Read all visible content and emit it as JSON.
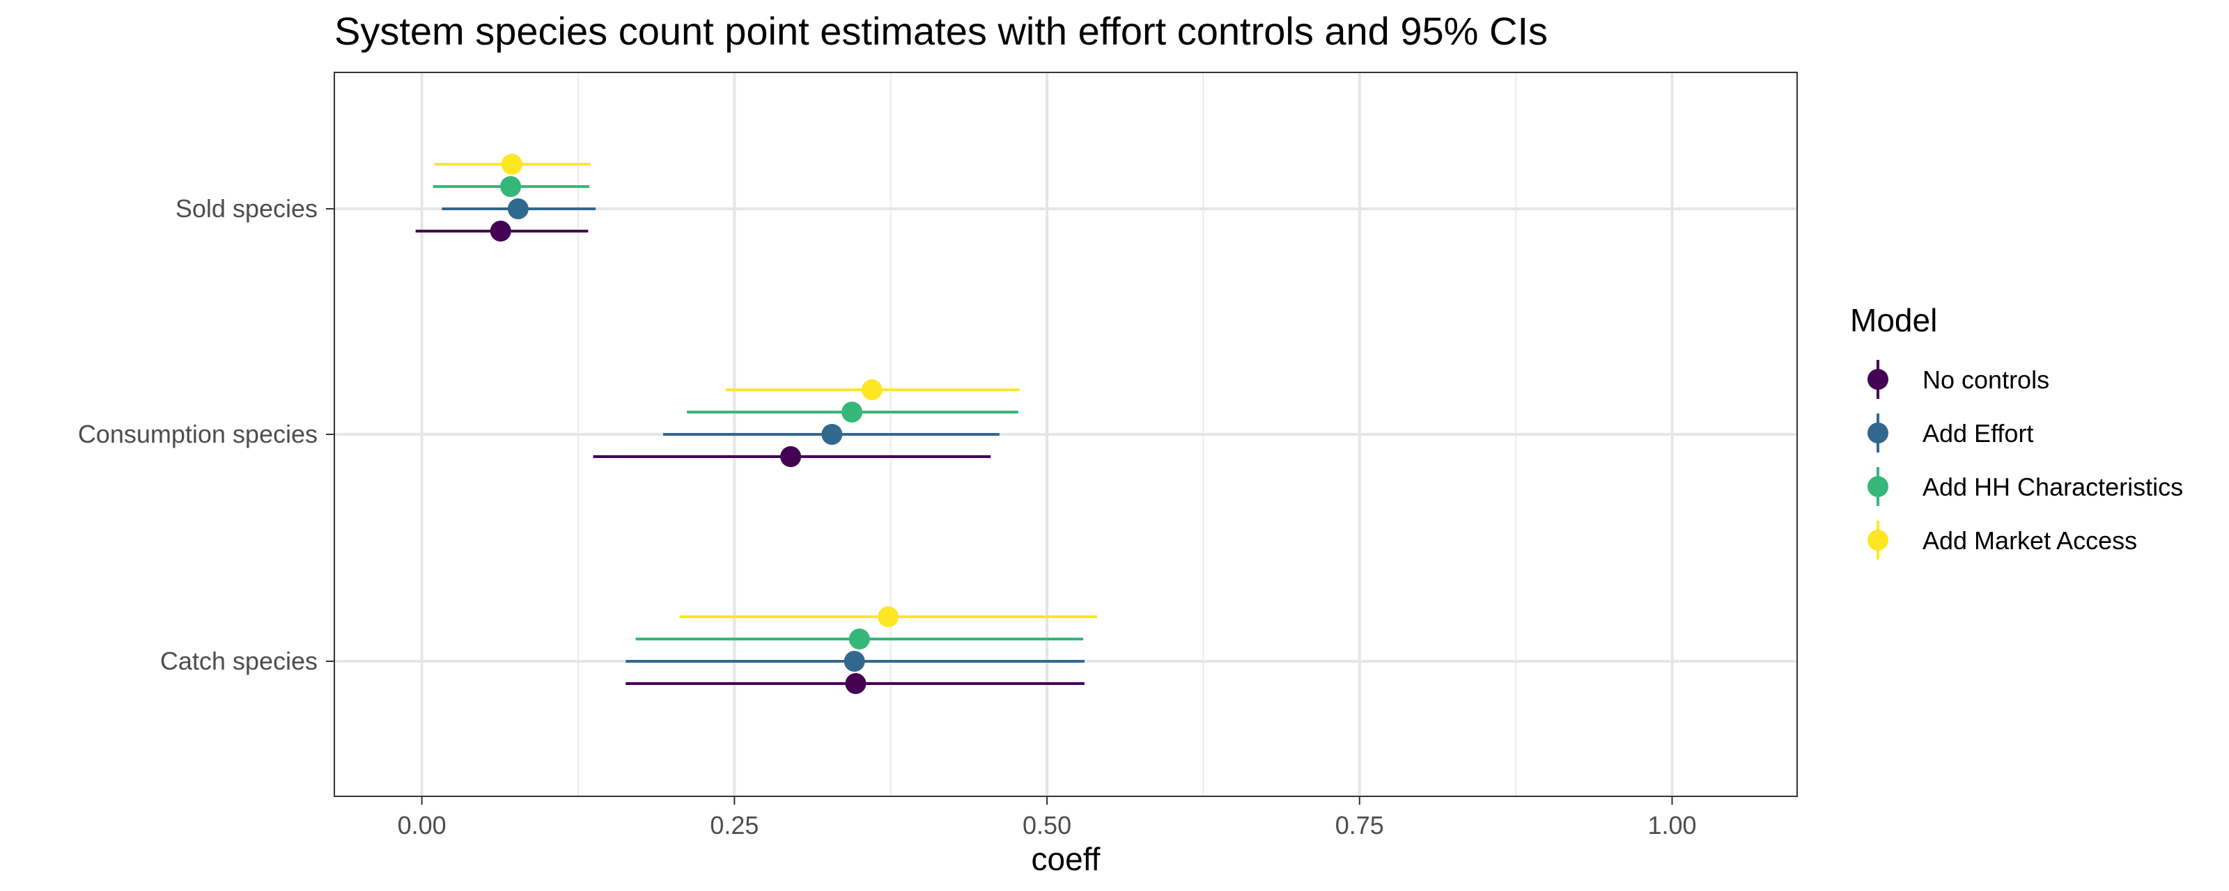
{
  "chart_data": {
    "type": "scatter",
    "subtype": "dot-and-whisker",
    "title": "System species count point estimates with effort controls and 95% CIs",
    "xlabel": "coeff",
    "ylabel": "",
    "xlim": [
      -0.07,
      1.1
    ],
    "x_ticks": [
      0.0,
      0.25,
      0.5,
      0.75,
      1.0
    ],
    "x_tick_labels": [
      "0.00",
      "0.25",
      "0.50",
      "0.75",
      "1.00"
    ],
    "categories": [
      "Sold species",
      "Consumption species",
      "Catch species"
    ],
    "grid": true,
    "legend": {
      "title": "Model",
      "position": "right"
    },
    "series": [
      {
        "name": "No controls",
        "color": "#440154",
        "points": [
          {
            "category": "Sold species",
            "estimate": 0.063,
            "ci_low": -0.005,
            "ci_high": 0.133
          },
          {
            "category": "Consumption species",
            "estimate": 0.295,
            "ci_low": 0.137,
            "ci_high": 0.455
          },
          {
            "category": "Catch species",
            "estimate": 0.347,
            "ci_low": 0.163,
            "ci_high": 0.53
          }
        ]
      },
      {
        "name": "Add Effort",
        "color": "#31688E",
        "points": [
          {
            "category": "Sold species",
            "estimate": 0.077,
            "ci_low": 0.016,
            "ci_high": 0.139
          },
          {
            "category": "Consumption species",
            "estimate": 0.328,
            "ci_low": 0.193,
            "ci_high": 0.462
          },
          {
            "category": "Catch species",
            "estimate": 0.346,
            "ci_low": 0.163,
            "ci_high": 0.53
          }
        ]
      },
      {
        "name": "Add HH Characteristics",
        "color": "#35B779",
        "points": [
          {
            "category": "Sold species",
            "estimate": 0.071,
            "ci_low": 0.009,
            "ci_high": 0.134
          },
          {
            "category": "Consumption species",
            "estimate": 0.344,
            "ci_low": 0.212,
            "ci_high": 0.477
          },
          {
            "category": "Catch species",
            "estimate": 0.35,
            "ci_low": 0.171,
            "ci_high": 0.529
          }
        ]
      },
      {
        "name": "Add Market Access",
        "color": "#FDE725",
        "points": [
          {
            "category": "Sold species",
            "estimate": 0.072,
            "ci_low": 0.01,
            "ci_high": 0.135
          },
          {
            "category": "Consumption species",
            "estimate": 0.36,
            "ci_low": 0.243,
            "ci_high": 0.478
          },
          {
            "category": "Catch species",
            "estimate": 0.373,
            "ci_low": 0.206,
            "ci_high": 0.54
          }
        ]
      }
    ]
  }
}
